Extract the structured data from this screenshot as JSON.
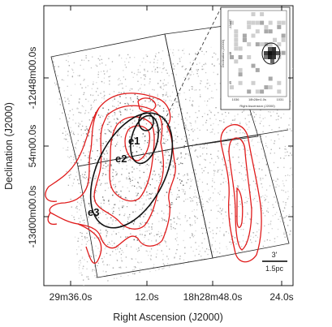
{
  "figure": {
    "x_axis_title": "Right Ascension (J2000)",
    "y_axis_title": "Declination (J2000)",
    "x_ticks": [
      "29m36.0s",
      "12.0s",
      "18h28m48.0s",
      "24.0s"
    ],
    "y_ticks": [
      "-12d48m00.0s",
      "54m00.0s",
      "-13d00m00.0s"
    ],
    "regions": [
      "e1",
      "e2",
      "e3"
    ],
    "scale_bar": {
      "angular": "3'",
      "physical": "1.5pc"
    },
    "inset": {
      "x_label": "Right Ascension (J2000)",
      "y_label": "Declination (J2000)",
      "x_ticks": [
        "1036",
        "18h28m1.0s",
        "1031"
      ],
      "y_ticks": [
        "-12d47",
        "48",
        "49"
      ]
    },
    "colors": {
      "contour": "#e01b1b",
      "ellipse": "#111111",
      "frame": "#000000",
      "pixels": "#888888"
    }
  }
}
